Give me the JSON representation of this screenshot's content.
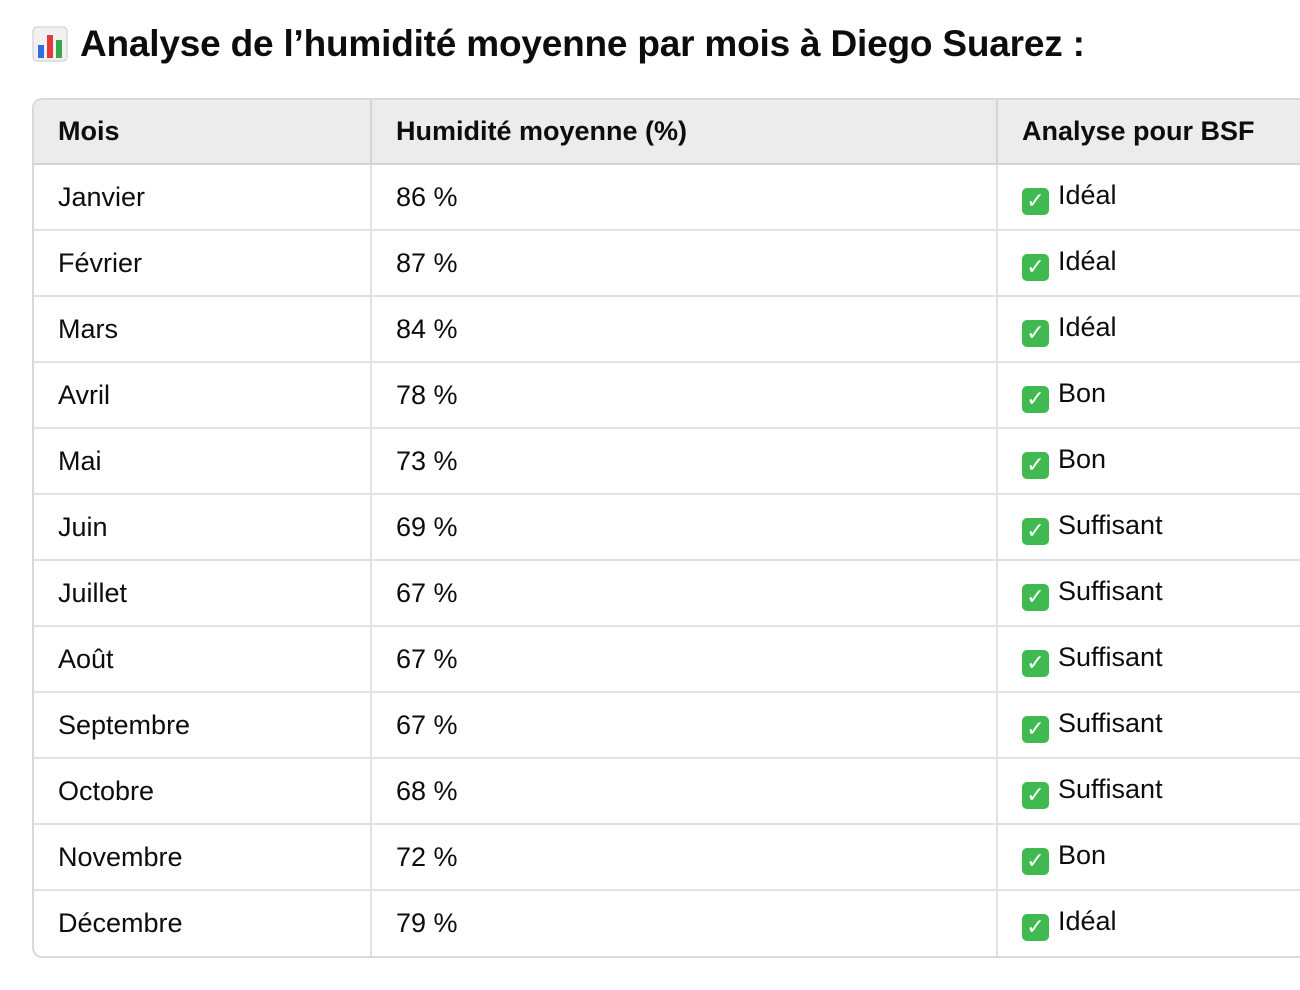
{
  "heading": {
    "icon": "bar-chart-icon",
    "text": "Analyse de l’humidité moyenne par mois à Diego Suarez :"
  },
  "table": {
    "headers": [
      "Mois",
      "Humidité moyenne (%)",
      "Analyse pour BSF"
    ],
    "rows": [
      {
        "mois": "Janvier",
        "humidite": "86 %",
        "analyse": "Idéal"
      },
      {
        "mois": "Février",
        "humidite": "87 %",
        "analyse": "Idéal"
      },
      {
        "mois": "Mars",
        "humidite": "84 %",
        "analyse": "Idéal"
      },
      {
        "mois": "Avril",
        "humidite": "78 %",
        "analyse": "Bon"
      },
      {
        "mois": "Mai",
        "humidite": "73 %",
        "analyse": "Bon"
      },
      {
        "mois": "Juin",
        "humidite": "69 %",
        "analyse": "Suffisant"
      },
      {
        "mois": "Juillet",
        "humidite": "67 %",
        "analyse": "Suffisant"
      },
      {
        "mois": "Août",
        "humidite": "67 %",
        "analyse": "Suffisant"
      },
      {
        "mois": "Septembre",
        "humidite": "67 %",
        "analyse": "Suffisant"
      },
      {
        "mois": "Octobre",
        "humidite": "68 %",
        "analyse": "Suffisant"
      },
      {
        "mois": "Novembre",
        "humidite": "72 %",
        "analyse": "Bon"
      },
      {
        "mois": "Décembre",
        "humidite": "79 %",
        "analyse": "Idéal"
      }
    ],
    "check_icon": "check-mark-button-icon",
    "check_color": "#3fb950"
  }
}
